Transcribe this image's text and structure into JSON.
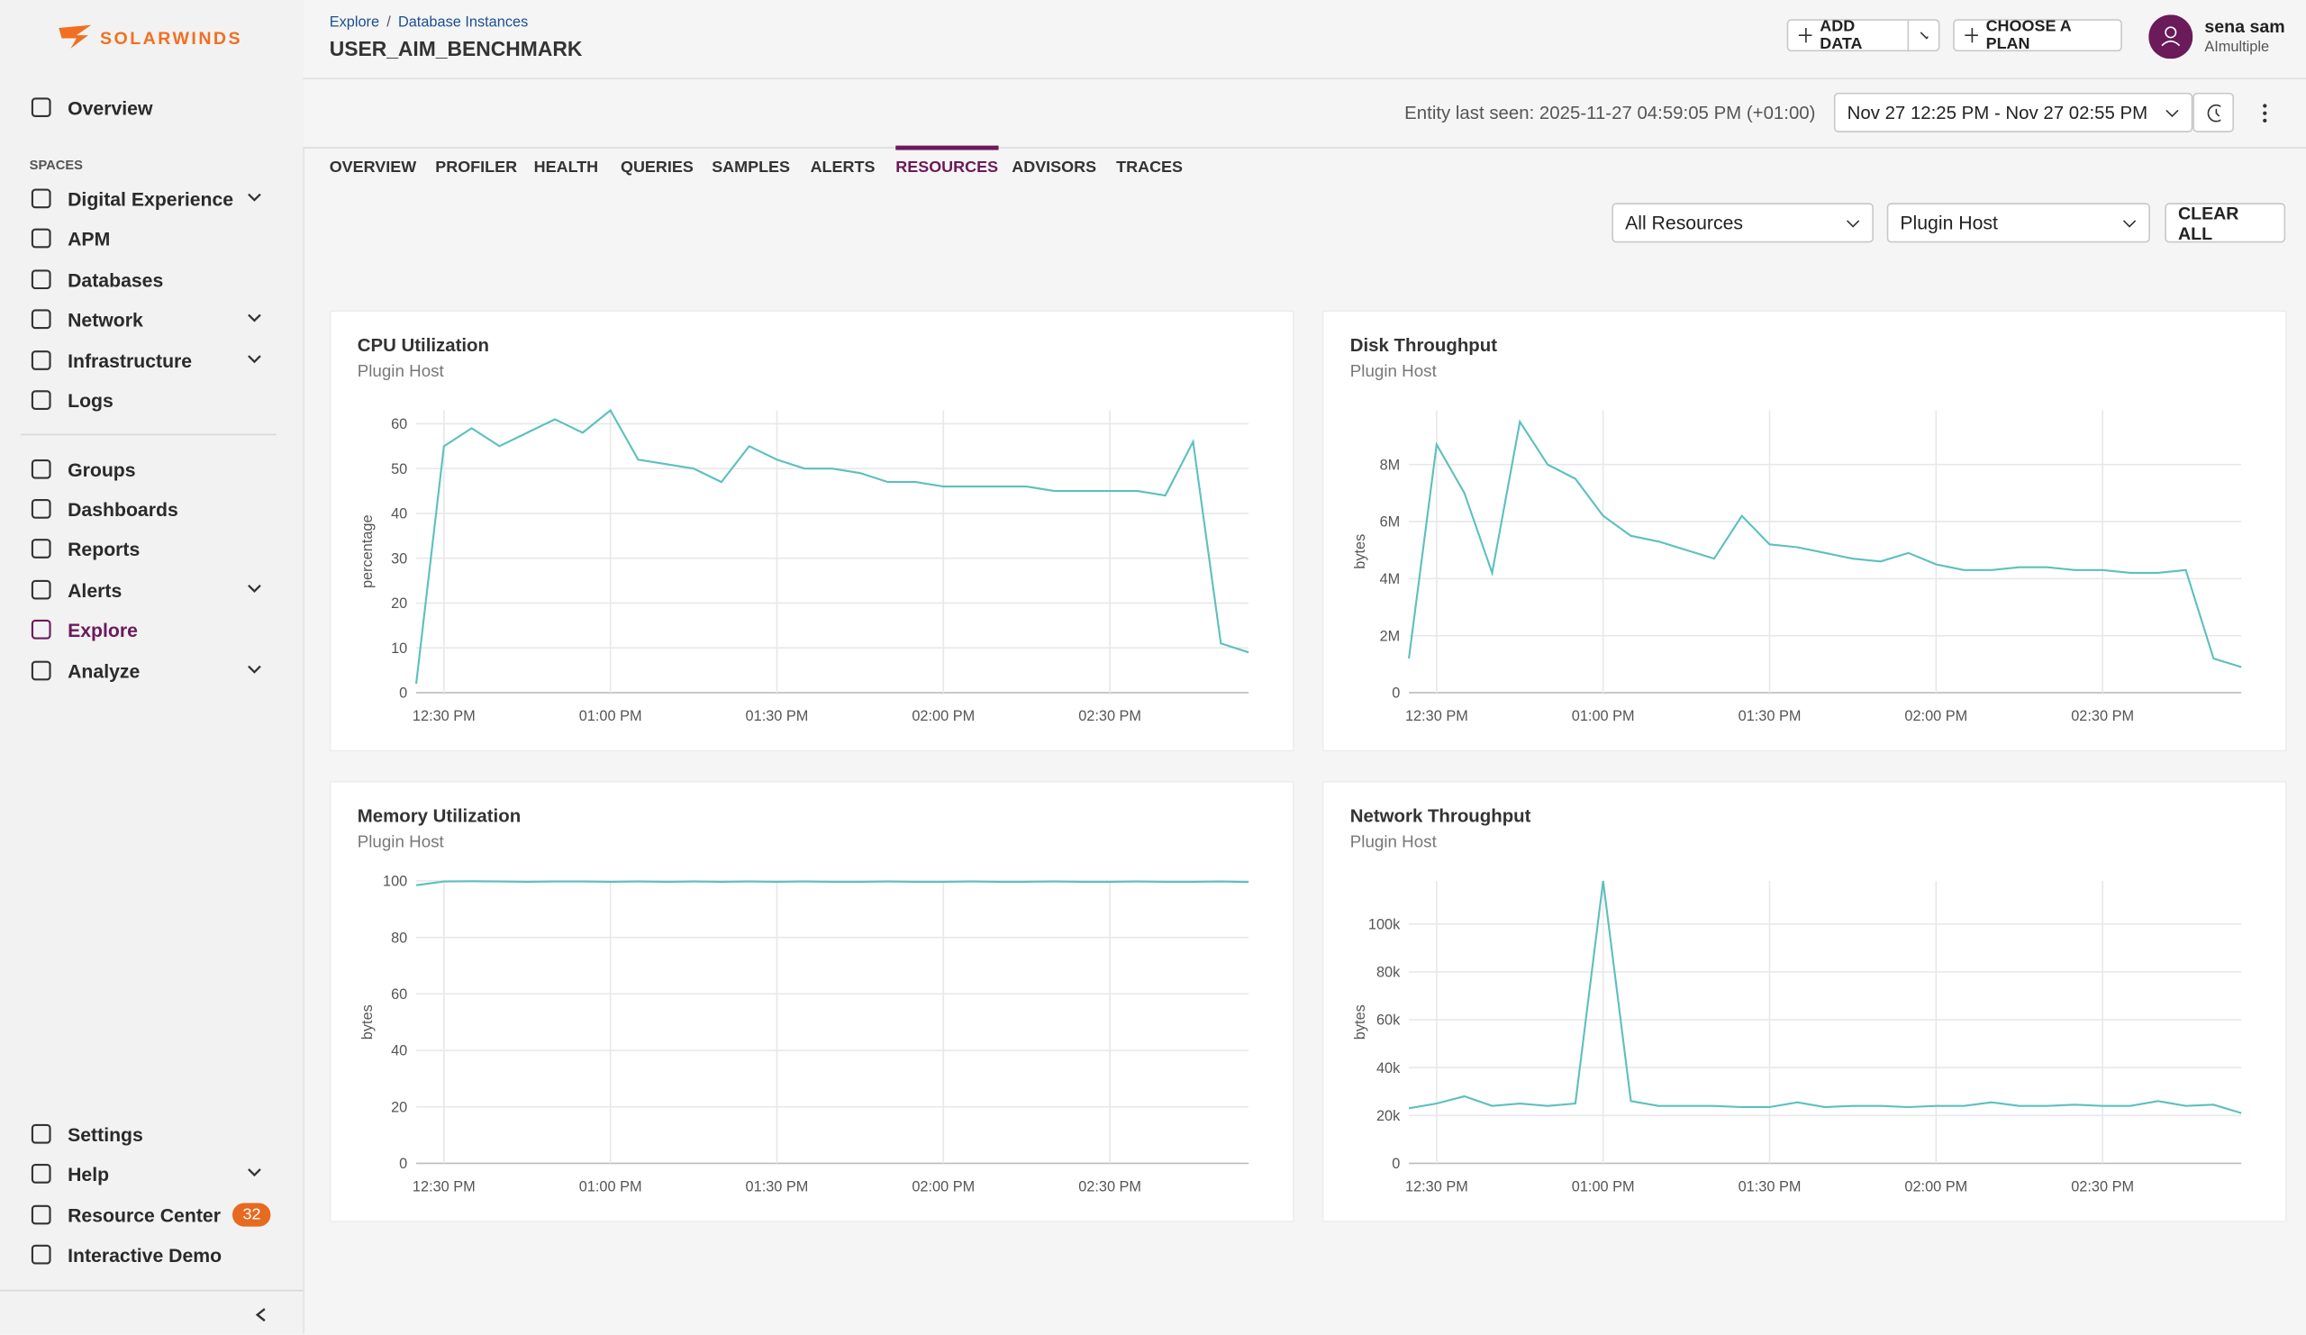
{
  "brand": "SOLARWINDS",
  "nav": {
    "top": [
      {
        "label": "Overview"
      }
    ],
    "spaces_label": "SPACES",
    "spaces": [
      {
        "label": "Digital Experience",
        "expandable": true
      },
      {
        "label": "APM",
        "expandable": false
      },
      {
        "label": "Databases",
        "expandable": false
      },
      {
        "label": "Network",
        "expandable": true
      },
      {
        "label": "Infrastructure",
        "expandable": true
      },
      {
        "label": "Logs",
        "expandable": false
      }
    ],
    "more": [
      {
        "label": "Groups",
        "expandable": false
      },
      {
        "label": "Dashboards",
        "expandable": false
      },
      {
        "label": "Reports",
        "expandable": false
      },
      {
        "label": "Alerts",
        "expandable": true
      },
      {
        "label": "Explore",
        "expandable": false,
        "active": true
      },
      {
        "label": "Analyze",
        "expandable": true
      }
    ],
    "bottom": [
      {
        "label": "Settings",
        "expandable": false
      },
      {
        "label": "Help",
        "expandable": true
      },
      {
        "label": "Resource Center",
        "expandable": false,
        "badge": 32
      },
      {
        "label": "Interactive Demo",
        "expandable": false
      }
    ]
  },
  "header": {
    "breadcrumb": [
      "Explore",
      "Database Instances"
    ],
    "breadcrumb_separator": "/",
    "title": "USER_AIM_BENCHMARK",
    "add_data": "ADD DATA",
    "choose_plan": "CHOOSE A PLAN",
    "user_name": "sena sam",
    "user_org": "AImultiple",
    "entity_last_seen": "Entity last seen: 2025-11-27 04:59:05 PM (+01:00)",
    "time_range": "Nov 27 12:25 PM - Nov 27 02:55 PM"
  },
  "tabs": {
    "items": [
      "OVERVIEW",
      "PROFILER",
      "HEALTH",
      "QUERIES",
      "SAMPLES",
      "ALERTS",
      "RESOURCES",
      "ADVISORS",
      "TRACES"
    ],
    "active": 6
  },
  "filters": {
    "resource": "All Resources",
    "host": "Plugin Host",
    "clear": "CLEAR ALL"
  },
  "charts": [
    {
      "type": "line",
      "title": "CPU Utilization",
      "subtitle": "Plugin Host",
      "y_label": "percentage",
      "color": "#5cc0bf",
      "x": [
        "12:25 PM",
        "12:30 PM",
        "12:35 PM",
        "12:40 PM",
        "12:45 PM",
        "12:50 PM",
        "12:55 PM",
        "01:00 PM",
        "01:05 PM",
        "01:10 PM",
        "01:15 PM",
        "01:20 PM",
        "01:25 PM",
        "01:30 PM",
        "01:35 PM",
        "01:40 PM",
        "01:45 PM",
        "01:50 PM",
        "01:55 PM",
        "02:00 PM",
        "02:05 PM",
        "02:10 PM",
        "02:15 PM",
        "02:20 PM",
        "02:25 PM",
        "02:30 PM",
        "02:35 PM",
        "02:40 PM",
        "02:45 PM",
        "02:50 PM",
        "02:55 PM"
      ],
      "values": [
        2,
        55,
        59,
        55,
        58,
        61,
        58,
        63,
        52,
        51,
        50,
        47,
        55,
        52,
        50,
        50,
        49,
        47,
        47,
        46,
        46,
        46,
        46,
        45,
        45,
        45,
        45,
        44,
        56,
        11,
        9
      ],
      "xlim": [
        "12:25 PM",
        "02:55 PM"
      ],
      "ylim": [
        0,
        63
      ],
      "xticks": [
        "12:30 PM",
        "01:00 PM",
        "01:30 PM",
        "02:00 PM",
        "02:30 PM"
      ],
      "yticks": [
        0,
        10,
        20,
        30,
        40,
        50,
        60
      ],
      "grid": true
    },
    {
      "type": "line",
      "title": "Disk Throughput",
      "subtitle": "Plugin Host",
      "y_label": "bytes",
      "color": "#5cc0bf",
      "x": [
        "12:25 PM",
        "12:30 PM",
        "12:35 PM",
        "12:40 PM",
        "12:45 PM",
        "12:50 PM",
        "12:55 PM",
        "01:00 PM",
        "01:05 PM",
        "01:10 PM",
        "01:15 PM",
        "01:20 PM",
        "01:25 PM",
        "01:30 PM",
        "01:35 PM",
        "01:40 PM",
        "01:45 PM",
        "01:50 PM",
        "01:55 PM",
        "02:00 PM",
        "02:05 PM",
        "02:10 PM",
        "02:15 PM",
        "02:20 PM",
        "02:25 PM",
        "02:30 PM",
        "02:35 PM",
        "02:40 PM",
        "02:45 PM",
        "02:50 PM",
        "02:55 PM"
      ],
      "values": [
        1200000,
        8700000,
        7000000,
        4200000,
        9500000,
        8000000,
        7500000,
        6200000,
        5500000,
        5300000,
        5000000,
        4700000,
        6200000,
        5200000,
        5100000,
        4900000,
        4700000,
        4600000,
        4900000,
        4500000,
        4300000,
        4300000,
        4400000,
        4400000,
        4300000,
        4300000,
        4200000,
        4200000,
        4300000,
        1200000,
        900000
      ],
      "xlim": [
        "12:25 PM",
        "02:55 PM"
      ],
      "ylim": [
        0,
        9900000
      ],
      "xticks": [
        "12:30 PM",
        "01:00 PM",
        "01:30 PM",
        "02:00 PM",
        "02:30 PM"
      ],
      "yticks": [
        0,
        {
          "value": 2000000,
          "label": "2M"
        },
        {
          "value": 4000000,
          "label": "4M"
        },
        {
          "value": 6000000,
          "label": "6M"
        },
        {
          "value": 8000000,
          "label": "8M"
        }
      ],
      "grid": true
    },
    {
      "type": "line",
      "title": "Memory Utilization",
      "subtitle": "Plugin Host",
      "y_label": "bytes",
      "color": "#5cc0bf",
      "x": [
        "12:25 PM",
        "12:30 PM",
        "12:35 PM",
        "12:40 PM",
        "12:45 PM",
        "12:50 PM",
        "12:55 PM",
        "01:00 PM",
        "01:05 PM",
        "01:10 PM",
        "01:15 PM",
        "01:20 PM",
        "01:25 PM",
        "01:30 PM",
        "01:35 PM",
        "01:40 PM",
        "01:45 PM",
        "01:50 PM",
        "01:55 PM",
        "02:00 PM",
        "02:05 PM",
        "02:10 PM",
        "02:15 PM",
        "02:20 PM",
        "02:25 PM",
        "02:30 PM",
        "02:35 PM",
        "02:40 PM",
        "02:45 PM",
        "02:50 PM",
        "02:55 PM"
      ],
      "values": [
        98.5,
        99.8,
        99.9,
        99.8,
        99.7,
        99.8,
        99.8,
        99.7,
        99.8,
        99.7,
        99.8,
        99.7,
        99.8,
        99.7,
        99.8,
        99.7,
        99.7,
        99.8,
        99.7,
        99.7,
        99.8,
        99.7,
        99.7,
        99.8,
        99.7,
        99.7,
        99.8,
        99.7,
        99.7,
        99.8,
        99.6
      ],
      "xlim": [
        "12:25 PM",
        "02:55 PM"
      ],
      "ylim": [
        0,
        100
      ],
      "xticks": [
        "12:30 PM",
        "01:00 PM",
        "01:30 PM",
        "02:00 PM",
        "02:30 PM"
      ],
      "yticks": [
        0,
        20,
        40,
        60,
        80,
        100
      ],
      "grid": true
    },
    {
      "type": "line",
      "title": "Network Throughput",
      "subtitle": "Plugin Host",
      "y_label": "bytes",
      "color": "#5cc0bf",
      "x": [
        "12:25 PM",
        "12:30 PM",
        "12:35 PM",
        "12:40 PM",
        "12:45 PM",
        "12:50 PM",
        "12:55 PM",
        "01:00 PM",
        "01:05 PM",
        "01:10 PM",
        "01:15 PM",
        "01:20 PM",
        "01:25 PM",
        "01:30 PM",
        "01:35 PM",
        "01:40 PM",
        "01:45 PM",
        "01:50 PM",
        "01:55 PM",
        "02:00 PM",
        "02:05 PM",
        "02:10 PM",
        "02:15 PM",
        "02:20 PM",
        "02:25 PM",
        "02:30 PM",
        "02:35 PM",
        "02:40 PM",
        "02:45 PM",
        "02:50 PM",
        "02:55 PM"
      ],
      "values": [
        23000,
        25000,
        28000,
        24000,
        25000,
        24000,
        25000,
        118000,
        26000,
        24000,
        24000,
        24000,
        23500,
        23500,
        25500,
        23500,
        24000,
        24000,
        23500,
        24000,
        24000,
        25500,
        24000,
        24000,
        24500,
        24000,
        24000,
        26000,
        24000,
        24500,
        21000
      ],
      "xlim": [
        "12:25 PM",
        "02:55 PM"
      ],
      "ylim": [
        0,
        118000
      ],
      "xticks": [
        "12:30 PM",
        "01:00 PM",
        "01:30 PM",
        "02:00 PM",
        "02:30 PM"
      ],
      "yticks": [
        0,
        {
          "value": 20000,
          "label": "20k"
        },
        {
          "value": 40000,
          "label": "40k"
        },
        {
          "value": 60000,
          "label": "60k"
        },
        {
          "value": 80000,
          "label": "80k"
        },
        {
          "value": 100000,
          "label": "100k"
        }
      ],
      "grid": true
    }
  ]
}
